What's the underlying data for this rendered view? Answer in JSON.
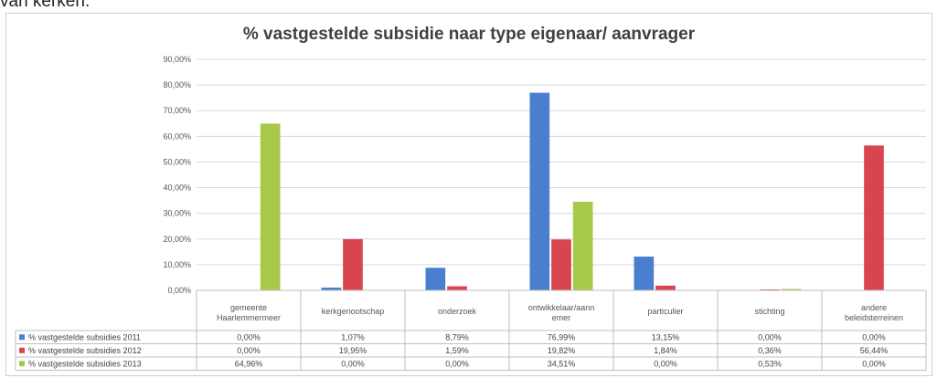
{
  "page": {
    "top_text": "van kerken."
  },
  "chart_data": {
    "type": "bar",
    "title": "% vastgestelde subsidie naar type eigenaar/ aanvrager",
    "categories": [
      [
        "gemeente",
        "Haarlemmermeer"
      ],
      [
        "kerkgenootschap"
      ],
      [
        "onderzoek"
      ],
      [
        "ontwikkelaar/aann",
        "emer"
      ],
      [
        "particulier"
      ],
      [
        "stichting"
      ],
      [
        "andere",
        "beleidsterreinen"
      ]
    ],
    "yticks": [
      "0,00%",
      "10,00%",
      "20,00%",
      "30,00%",
      "40,00%",
      "50,00%",
      "60,00%",
      "70,00%",
      "80,00%",
      "90,00%"
    ],
    "ylim": [
      0,
      90
    ],
    "grid": true,
    "legend": "table-bottom",
    "series": [
      {
        "name": "% vastgestelde subsidies 2011",
        "color": "#4a7fd0",
        "values": [
          0,
          1.07,
          8.79,
          76.99,
          13.15,
          0,
          0
        ],
        "labels": [
          "0,00%",
          "1,07%",
          "8,79%",
          "76,99%",
          "13,15%",
          "0,00%",
          "0,00%"
        ]
      },
      {
        "name": "% vastgestelde subsidies 2012",
        "color": "#d9454d",
        "values": [
          0,
          19.95,
          1.59,
          19.82,
          1.84,
          0.36,
          56.44
        ],
        "labels": [
          "0,00%",
          "19,95%",
          "1,59%",
          "19,82%",
          "1,84%",
          "0,36%",
          "56,44%"
        ]
      },
      {
        "name": "% vastgestelde subsidies 2013",
        "color": "#a8c84a",
        "values": [
          64.96,
          0,
          0,
          34.51,
          0,
          0.53,
          0
        ],
        "labels": [
          "64,96%",
          "0,00%",
          "0,00%",
          "34,51%",
          "0,00%",
          "0,53%",
          "0,00%"
        ]
      }
    ]
  }
}
